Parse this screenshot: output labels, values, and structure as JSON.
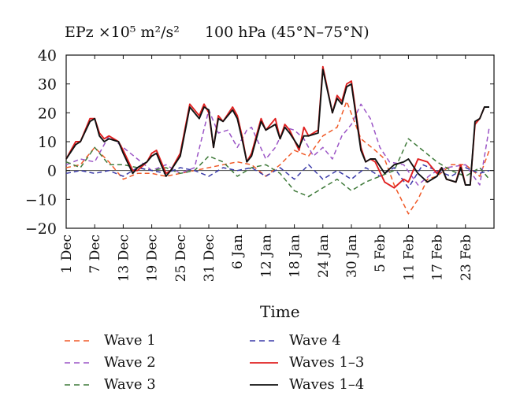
{
  "chart_data": {
    "type": "line",
    "title": "EPz ×10⁵ m²/s²",
    "subtitle": "100 hPa (45°N–75°N)",
    "xlabel": "Time",
    "ylabel": "",
    "ylim": [
      -20,
      40
    ],
    "yticks": [
      "40",
      "30",
      "20",
      "10",
      "0",
      "−10",
      "−20"
    ],
    "xlim": [
      0,
      90
    ],
    "xticks": [
      {
        "pos": 0,
        "label": "1 Dec"
      },
      {
        "pos": 6,
        "label": "7 Dec"
      },
      {
        "pos": 12,
        "label": "13 Dec"
      },
      {
        "pos": 18,
        "label": "19 Dec"
      },
      {
        "pos": 24,
        "label": "25 Dec"
      },
      {
        "pos": 30,
        "label": "31 Dec"
      },
      {
        "pos": 36,
        "label": "6 Jan"
      },
      {
        "pos": 42,
        "label": "12 Jan"
      },
      {
        "pos": 48,
        "label": "18 Jan"
      },
      {
        "pos": 54,
        "label": "24 Jan"
      },
      {
        "pos": 60,
        "label": "30 Jan"
      },
      {
        "pos": 66,
        "label": "5 Feb"
      },
      {
        "pos": 72,
        "label": "11 Feb"
      },
      {
        "pos": 78,
        "label": "17 Feb"
      },
      {
        "pos": 84,
        "label": "23 Feb"
      }
    ],
    "grid": false,
    "legend_position": "bottom",
    "series": [
      {
        "name": "Wave 1",
        "color": "#f05a28",
        "style": "dashed",
        "x": [
          0,
          3,
          6,
          9,
          12,
          15,
          18,
          21,
          24,
          27,
          30,
          33,
          36,
          39,
          42,
          45,
          48,
          51,
          54,
          57,
          59,
          62,
          65,
          67,
          69,
          72,
          74,
          76,
          78,
          81,
          84,
          87,
          89
        ],
        "y": [
          1,
          2,
          8,
          3,
          -3,
          -1,
          -1,
          -2,
          -1,
          0,
          1,
          2,
          3,
          2,
          -2,
          2,
          7,
          5,
          12,
          15,
          24,
          11,
          7,
          4,
          -5,
          -15,
          -10,
          -3,
          -2,
          2,
          2,
          -2,
          7
        ]
      },
      {
        "name": "Wave 2",
        "color": "#9b55c6",
        "style": "dashed",
        "x": [
          0,
          3,
          6,
          9,
          12,
          15,
          18,
          21,
          24,
          27,
          30,
          32,
          34,
          36,
          38,
          39,
          42,
          44,
          46,
          48,
          50,
          52,
          54,
          56,
          58,
          60,
          62,
          64,
          66,
          68,
          71,
          74,
          77,
          80,
          84,
          87,
          89
        ],
        "y": [
          2,
          4,
          3,
          12,
          8,
          4,
          0,
          2,
          -1,
          1,
          21,
          13,
          14,
          8,
          14,
          15,
          4,
          8,
          15,
          14,
          11,
          5,
          8,
          4,
          12,
          16,
          23,
          18,
          8,
          3,
          2,
          -5,
          -1,
          1,
          2,
          -5,
          15
        ]
      },
      {
        "name": "Wave 3",
        "color": "#3f7a3a",
        "style": "dashed",
        "x": [
          0,
          3,
          6,
          9,
          12,
          15,
          18,
          21,
          24,
          27,
          30,
          33,
          36,
          39,
          42,
          45,
          48,
          51,
          54,
          57,
          60,
          63,
          66,
          69,
          72,
          75,
          78,
          81,
          84,
          87,
          89
        ],
        "y": [
          3,
          1,
          8,
          2,
          2,
          1,
          0,
          1,
          -1,
          0,
          5,
          3,
          -2,
          1,
          2,
          -1,
          -7,
          -9,
          -6,
          -3,
          -7,
          -4,
          -2,
          0,
          11,
          7,
          3,
          0,
          -2,
          1,
          -3
        ]
      },
      {
        "name": "Wave 4",
        "color": "#3a3aa8",
        "style": "dashed",
        "x": [
          0,
          3,
          6,
          9,
          12,
          15,
          18,
          21,
          24,
          27,
          30,
          33,
          36,
          39,
          42,
          45,
          48,
          51,
          54,
          57,
          60,
          63,
          66,
          69,
          72,
          75,
          78,
          81,
          84,
          87,
          89
        ],
        "y": [
          -1,
          0,
          -1,
          0,
          -2,
          1,
          0,
          -1,
          1,
          0,
          -2,
          1,
          0,
          1,
          -2,
          1,
          -3,
          2,
          -3,
          0,
          -3,
          1,
          -2,
          1,
          -6,
          2,
          0,
          -2,
          1,
          -1,
          0
        ]
      },
      {
        "name": "Waves 1–3",
        "color": "#e02020",
        "style": "solid",
        "x": [
          0,
          2,
          3,
          5,
          6,
          7,
          8,
          9,
          11,
          12,
          14,
          15,
          17,
          18,
          19,
          21,
          22,
          24,
          26,
          28,
          29,
          30,
          31,
          32,
          33,
          35,
          36,
          37,
          38,
          39,
          41,
          42,
          44,
          45,
          46,
          47,
          49,
          50,
          51,
          53,
          54,
          56,
          57,
          58,
          59,
          60,
          62,
          63,
          64,
          65,
          67,
          69,
          71,
          72,
          74,
          76,
          78,
          79,
          80,
          82,
          83,
          84,
          85,
          86,
          87,
          88,
          89
        ],
        "y": [
          4,
          10,
          10,
          18,
          18,
          13,
          11,
          12,
          10,
          7,
          0,
          0,
          3,
          6,
          7,
          -1,
          0,
          6,
          23,
          19,
          23,
          20,
          8,
          19,
          17,
          22,
          19,
          12,
          3,
          6,
          18,
          14,
          18,
          11,
          16,
          14,
          7,
          15,
          12,
          14,
          36,
          20,
          26,
          24,
          30,
          31,
          8,
          3,
          4,
          3,
          -4,
          -6,
          -3,
          -4,
          4,
          3,
          -1,
          1,
          -3,
          -4,
          2,
          -5,
          -5,
          16,
          18,
          22,
          22
        ]
      },
      {
        "name": "Waves 1–4",
        "color": "#111111",
        "style": "solid",
        "x": [
          0,
          2,
          3,
          5,
          6,
          7,
          8,
          9,
          11,
          12,
          14,
          15,
          17,
          18,
          19,
          21,
          22,
          24,
          26,
          28,
          29,
          30,
          31,
          32,
          33,
          35,
          36,
          37,
          38,
          39,
          41,
          42,
          44,
          45,
          46,
          47,
          49,
          50,
          51,
          53,
          54,
          56,
          57,
          58,
          59,
          60,
          62,
          63,
          64,
          65,
          67,
          69,
          71,
          72,
          74,
          76,
          78,
          79,
          80,
          82,
          83,
          84,
          85,
          86,
          87,
          88,
          89
        ],
        "y": [
          4,
          9,
          10,
          17,
          18,
          12,
          10,
          11,
          10,
          6,
          -1,
          1,
          3,
          5,
          6,
          -2,
          0,
          5,
          22,
          18,
          22,
          21,
          8,
          18,
          17,
          21,
          18,
          11,
          3,
          5,
          17,
          14,
          16,
          11,
          15,
          13,
          8,
          12,
          12,
          13,
          35,
          20,
          25,
          23,
          29,
          30,
          7,
          3,
          4,
          4,
          -1,
          2,
          3,
          4,
          -1,
          -4,
          -2,
          1,
          -3,
          -4,
          1,
          -5,
          -5,
          17,
          18,
          22,
          22
        ]
      }
    ]
  },
  "legend": [
    {
      "label": "Wave 1"
    },
    {
      "label": "Wave 4"
    },
    {
      "label": "Wave 2"
    },
    {
      "label": "Waves 1–3"
    },
    {
      "label": "Wave 3"
    },
    {
      "label": "Waves 1–4"
    }
  ]
}
